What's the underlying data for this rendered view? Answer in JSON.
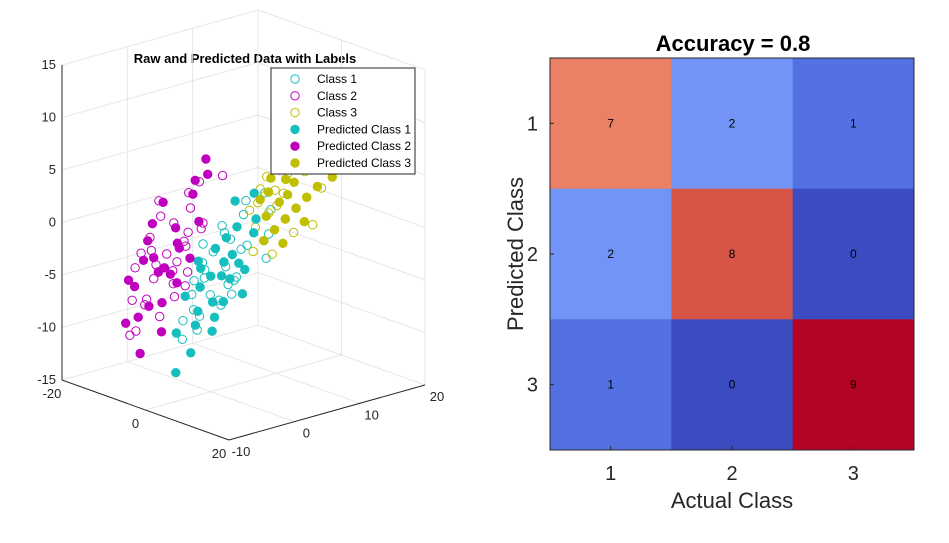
{
  "chart_data": [
    {
      "type": "scatter",
      "projection": "3d",
      "title": "Raw and Predicted Data with Labels",
      "axes": {
        "x": {
          "ticks": [
            "-20",
            "0",
            "20"
          ],
          "range": [
            -20,
            20
          ]
        },
        "y": {
          "ticks": [
            "-10",
            "0",
            "10",
            "20"
          ],
          "range": [
            -10,
            20
          ]
        },
        "z": {
          "ticks": [
            "15",
            "10",
            "5",
            "0",
            "-5",
            "-10",
            "-15"
          ],
          "range": [
            -15,
            15
          ]
        }
      },
      "legend": {
        "position": "top-right",
        "entries": [
          {
            "label": "Class 1",
            "color": "#17bebe",
            "marker": "open-circle"
          },
          {
            "label": "Class 2",
            "color": "#bf00bf",
            "marker": "open-circle"
          },
          {
            "label": "Class 3",
            "color": "#bfbf00",
            "marker": "open-circle"
          },
          {
            "label": "Predicted Class 1",
            "color": "#17bebe",
            "marker": "filled-circle"
          },
          {
            "label": "Predicted Class 2",
            "color": "#bf00bf",
            "marker": "filled-circle"
          },
          {
            "label": "Predicted Class 3",
            "color": "#bfbf00",
            "marker": "filled-circle"
          }
        ]
      },
      "series": [
        {
          "name": "Class 1",
          "color": "#17bebe",
          "filled": false,
          "points": [
            [
              0,
              2,
              -3
            ],
            [
              -3,
              1,
              -4
            ],
            [
              3,
              -2,
              -5
            ],
            [
              1,
              4,
              -2
            ],
            [
              -2,
              3,
              0
            ],
            [
              2,
              0,
              -6
            ],
            [
              4,
              3,
              -1
            ],
            [
              -1,
              -2,
              -7
            ],
            [
              0,
              5,
              1
            ],
            [
              3,
              2,
              -4
            ],
            [
              -4,
              0,
              -5
            ],
            [
              5,
              6,
              2
            ],
            [
              -2,
              -3,
              -8
            ],
            [
              1,
              -5,
              -9
            ],
            [
              2,
              1,
              -3
            ],
            [
              -3,
              4,
              -1
            ],
            [
              4,
              -1,
              -6
            ],
            [
              0,
              -1,
              -4
            ],
            [
              6,
              5,
              0
            ],
            [
              -1,
              6,
              2
            ],
            [
              3,
              -4,
              -8
            ],
            [
              2,
              7,
              3
            ],
            [
              -5,
              2,
              -2
            ],
            [
              1,
              2,
              -5
            ],
            [
              -2,
              0,
              -3
            ],
            [
              7,
              4,
              -2
            ],
            [
              0,
              3,
              -1
            ],
            [
              -3,
              -1,
              -6
            ],
            [
              4,
              1,
              -4
            ],
            [
              2,
              -3,
              -7
            ],
            [
              -1,
              1,
              -2
            ],
            [
              5,
              0,
              -5
            ]
          ]
        },
        {
          "name": "Class 2",
          "color": "#bf00bf",
          "filled": false,
          "points": [
            [
              -8,
              -4,
              -2
            ],
            [
              -10,
              -2,
              -4
            ],
            [
              -6,
              -6,
              -6
            ],
            [
              -12,
              0,
              0
            ],
            [
              -9,
              -3,
              -5
            ],
            [
              -7,
              1,
              -1
            ],
            [
              -11,
              -5,
              -7
            ],
            [
              -5,
              -2,
              -3
            ],
            [
              -13,
              -1,
              -2
            ],
            [
              -8,
              2,
              1
            ],
            [
              -6,
              -4,
              -8
            ],
            [
              -10,
              3,
              2
            ],
            [
              -4,
              -1,
              -4
            ],
            [
              -9,
              0,
              -6
            ],
            [
              -7,
              -7,
              -9
            ],
            [
              -12,
              -3,
              -3
            ],
            [
              -5,
              2,
              0
            ],
            [
              -8,
              -5,
              -7
            ],
            [
              -14,
              1,
              1
            ],
            [
              -6,
              0,
              -2
            ],
            [
              -9,
              4,
              3
            ],
            [
              -11,
              -1,
              -5
            ],
            [
              -4,
              -3,
              -6
            ],
            [
              -7,
              3,
              -1
            ],
            [
              -10,
              -6,
              -10
            ],
            [
              -5,
              5,
              4
            ],
            [
              -8,
              1,
              -2
            ],
            [
              -3,
              -2,
              -5
            ],
            [
              -12,
              2,
              -1
            ],
            [
              -6,
              -2,
              -4
            ],
            [
              -9,
              -1,
              -3
            ],
            [
              -15,
              -2,
              -5
            ]
          ]
        },
        {
          "name": "Class 3",
          "color": "#bfbf00",
          "filled": false,
          "points": [
            [
              8,
              6,
              4
            ],
            [
              10,
              8,
              6
            ],
            [
              6,
              5,
              2
            ],
            [
              12,
              9,
              7
            ],
            [
              9,
              4,
              1
            ],
            [
              7,
              7,
              5
            ],
            [
              11,
              6,
              3
            ],
            [
              5,
              8,
              8
            ],
            [
              13,
              10,
              9
            ],
            [
              8,
              3,
              0
            ],
            [
              6,
              9,
              9
            ],
            [
              10,
              5,
              2
            ],
            [
              4,
              6,
              5
            ],
            [
              9,
              11,
              10
            ],
            [
              7,
              2,
              -1
            ],
            [
              12,
              7,
              4
            ],
            [
              5,
              4,
              3
            ],
            [
              8,
              9,
              8
            ],
            [
              14,
              8,
              5
            ],
            [
              6,
              3,
              1
            ],
            [
              9,
              6,
              6
            ],
            [
              11,
              10,
              8
            ],
            [
              4,
              5,
              4
            ],
            [
              7,
              8,
              7
            ],
            [
              10,
              3,
              -1
            ],
            [
              5,
              7,
              6
            ],
            [
              8,
              5,
              3
            ],
            [
              3,
              4,
              2
            ],
            [
              12,
              5,
              1
            ],
            [
              6,
              6,
              4
            ],
            [
              9,
              9,
              9
            ],
            [
              15,
              6,
              2
            ]
          ]
        },
        {
          "name": "Predicted Class 1",
          "color": "#17bebe",
          "filled": true,
          "points": [
            [
              1,
              1,
              -4
            ],
            [
              -2,
              2,
              -2
            ],
            [
              3,
              0,
              -6
            ],
            [
              0,
              4,
              0
            ],
            [
              -1,
              -1,
              -5
            ],
            [
              2,
              3,
              -3
            ],
            [
              4,
              -2,
              -7
            ],
            [
              -3,
              0,
              -3
            ],
            [
              1,
              -3,
              -8
            ],
            [
              3,
              5,
              1
            ],
            [
              -2,
              -4,
              -9
            ],
            [
              0,
              0,
              -4
            ],
            [
              2,
              -1,
              -6
            ],
            [
              5,
              2,
              -3
            ],
            [
              -4,
              1,
              -4
            ],
            [
              1,
              6,
              3
            ],
            [
              3,
              -5,
              -10
            ],
            [
              -1,
              3,
              -1
            ],
            [
              6,
              1,
              -5
            ],
            [
              0,
              -2,
              -7
            ],
            [
              2,
              2,
              -2
            ],
            [
              -3,
              -2,
              -6
            ],
            [
              4,
              4,
              0
            ],
            [
              1,
              -6,
              -12
            ],
            [
              -2,
              5,
              2
            ],
            [
              3,
              1,
              -4
            ],
            [
              0,
              2,
              -3
            ],
            [
              5,
              -3,
              -8
            ]
          ]
        },
        {
          "name": "Predicted Class 2",
          "color": "#bf00bf",
          "filled": true,
          "points": [
            [
              -9,
              -3,
              -3
            ],
            [
              -11,
              -1,
              -5
            ],
            [
              -7,
              -5,
              -7
            ],
            [
              -13,
              1,
              1
            ],
            [
              -8,
              -2,
              -4
            ],
            [
              -6,
              2,
              0
            ],
            [
              -12,
              -4,
              -6
            ],
            [
              -5,
              -3,
              -4
            ],
            [
              -14,
              0,
              -1
            ],
            [
              -9,
              3,
              2
            ],
            [
              -7,
              -3,
              -7
            ],
            [
              -10,
              4,
              3
            ],
            [
              -5,
              0,
              -3
            ],
            [
              -8,
              -6,
              -8
            ],
            [
              -12,
              -2,
              -2
            ],
            [
              -6,
              -1,
              -2
            ],
            [
              -15,
              -3,
              -6
            ],
            [
              -4,
              -5,
              -9
            ],
            [
              -10,
              1,
              -1
            ],
            [
              -7,
              4,
              4
            ],
            [
              -11,
              -6,
              -9
            ],
            [
              -6,
              -7,
              -11
            ],
            [
              -13,
              -2,
              -4
            ],
            [
              -8,
              0,
              -2
            ],
            [
              -9,
              5,
              5
            ],
            [
              -5,
              -2,
              -5
            ]
          ]
        },
        {
          "name": "Predicted Class 3",
          "color": "#bfbf00",
          "filled": true,
          "points": [
            [
              9,
              7,
              5
            ],
            [
              11,
              9,
              7
            ],
            [
              7,
              6,
              3
            ],
            [
              13,
              10,
              8
            ],
            [
              10,
              5,
              2
            ],
            [
              8,
              8,
              6
            ],
            [
              12,
              7,
              4
            ],
            [
              6,
              9,
              9
            ],
            [
              14,
              11,
              10
            ],
            [
              9,
              4,
              1
            ],
            [
              7,
              10,
              10
            ],
            [
              11,
              6,
              3
            ],
            [
              5,
              7,
              6
            ],
            [
              10,
              12,
              11
            ],
            [
              8,
              3,
              0
            ],
            [
              13,
              8,
              5
            ],
            [
              6,
              5,
              4
            ],
            [
              9,
              10,
              9
            ],
            [
              15,
              9,
              6
            ],
            [
              7,
              4,
              2
            ],
            [
              10,
              7,
              7
            ],
            [
              12,
              11,
              9
            ],
            [
              5,
              6,
              5
            ],
            [
              8,
              9,
              8
            ],
            [
              11,
              4,
              0
            ],
            [
              6,
              8,
              7
            ],
            [
              9,
              6,
              4
            ],
            [
              4,
              5,
              3
            ],
            [
              13,
              6,
              2
            ],
            [
              7,
              7,
              5
            ]
          ]
        }
      ]
    },
    {
      "type": "heatmap",
      "title": "Accuracy = 0.8",
      "xlabel": "Actual Class",
      "ylabel": "Predicted Class",
      "x_categories": [
        "1",
        "2",
        "3"
      ],
      "y_categories": [
        "1",
        "2",
        "3"
      ],
      "values": [
        [
          7,
          2,
          1
        ],
        [
          2,
          8,
          0
        ],
        [
          1,
          0,
          9
        ]
      ],
      "colormap": "coolwarm",
      "vmin": 0,
      "vmax": 9
    }
  ]
}
